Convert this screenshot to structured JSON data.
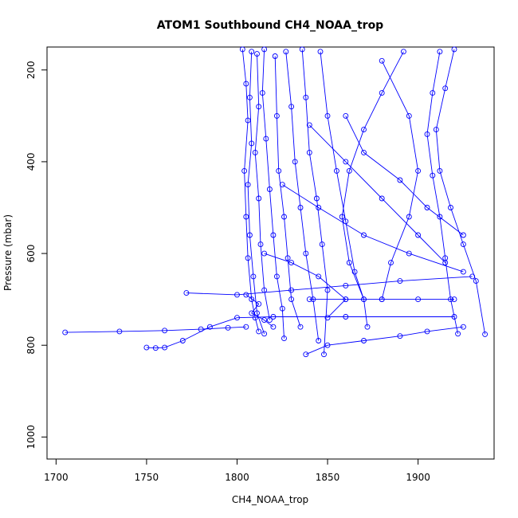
{
  "chart_data": {
    "type": "scatter",
    "title": "ATOM1 Southbound CH4_NOAA_trop",
    "xlabel": "CH4_NOAA_trop",
    "ylabel": "Pressure (mbar)",
    "xlim": [
      1695,
      1942
    ],
    "ylim": [
      1048,
      150
    ],
    "y_reversed": true,
    "xticks": [
      1700,
      1750,
      1800,
      1850,
      1900
    ],
    "yticks": [
      200,
      400,
      600,
      800,
      1000
    ],
    "series_color": "#0000ff",
    "marker": "open-circle",
    "series": [
      {
        "values": [
          [
            1803,
            155
          ],
          [
            1805,
            230
          ],
          [
            1806,
            310
          ],
          [
            1804,
            420
          ],
          [
            1805,
            520
          ],
          [
            1806,
            610
          ],
          [
            1808,
            700
          ],
          [
            1810,
            740
          ],
          [
            1812,
            770
          ]
        ]
      },
      {
        "values": [
          [
            1808,
            160
          ],
          [
            1807,
            260
          ],
          [
            1808,
            360
          ],
          [
            1806,
            450
          ],
          [
            1807,
            560
          ],
          [
            1809,
            650
          ],
          [
            1811,
            730
          ],
          [
            1815,
            775
          ]
        ]
      },
      {
        "values": [
          [
            1811,
            165
          ],
          [
            1812,
            280
          ],
          [
            1810,
            380
          ],
          [
            1812,
            480
          ],
          [
            1813,
            580
          ],
          [
            1815,
            680
          ],
          [
            1818,
            745
          ]
        ]
      },
      {
        "values": [
          [
            1815,
            155
          ],
          [
            1814,
            250
          ],
          [
            1816,
            350
          ],
          [
            1818,
            460
          ],
          [
            1820,
            560
          ],
          [
            1822,
            650
          ],
          [
            1825,
            720
          ],
          [
            1826,
            785
          ]
        ]
      },
      {
        "values": [
          [
            1821,
            170
          ],
          [
            1822,
            300
          ],
          [
            1823,
            420
          ],
          [
            1826,
            520
          ],
          [
            1828,
            610
          ],
          [
            1830,
            700
          ],
          [
            1835,
            760
          ]
        ]
      },
      {
        "values": [
          [
            1827,
            160
          ],
          [
            1830,
            280
          ],
          [
            1832,
            400
          ],
          [
            1835,
            500
          ],
          [
            1838,
            600
          ],
          [
            1842,
            700
          ],
          [
            1845,
            790
          ]
        ]
      },
      {
        "values": [
          [
            1836,
            155
          ],
          [
            1838,
            260
          ],
          [
            1840,
            380
          ],
          [
            1844,
            480
          ],
          [
            1847,
            580
          ],
          [
            1850,
            680
          ],
          [
            1848,
            820
          ]
        ]
      },
      {
        "values": [
          [
            1846,
            160
          ],
          [
            1850,
            300
          ],
          [
            1855,
            420
          ],
          [
            1860,
            530
          ],
          [
            1865,
            640
          ],
          [
            1870,
            700
          ],
          [
            1872,
            760
          ]
        ]
      },
      {
        "values": [
          [
            1892,
            160
          ],
          [
            1880,
            250
          ],
          [
            1870,
            330
          ],
          [
            1862,
            420
          ],
          [
            1858,
            520
          ],
          [
            1862,
            620
          ],
          [
            1870,
            700
          ]
        ]
      },
      {
        "values": [
          [
            1912,
            160
          ],
          [
            1908,
            250
          ],
          [
            1905,
            340
          ],
          [
            1908,
            430
          ],
          [
            1912,
            520
          ],
          [
            1915,
            610
          ],
          [
            1918,
            700
          ],
          [
            1922,
            775
          ]
        ]
      },
      {
        "values": [
          [
            1920,
            155
          ],
          [
            1915,
            240
          ],
          [
            1910,
            330
          ],
          [
            1912,
            420
          ],
          [
            1918,
            500
          ],
          [
            1925,
            580
          ],
          [
            1932,
            660
          ],
          [
            1937,
            776
          ]
        ]
      },
      {
        "values": [
          [
            1705,
            772
          ],
          [
            1735,
            770
          ],
          [
            1760,
            768
          ],
          [
            1780,
            765
          ],
          [
            1795,
            762
          ],
          [
            1805,
            760
          ]
        ]
      },
      {
        "values": [
          [
            1750,
            805
          ],
          [
            1755,
            806
          ],
          [
            1760,
            805
          ],
          [
            1770,
            790
          ],
          [
            1785,
            760
          ],
          [
            1800,
            740
          ],
          [
            1820,
            738
          ],
          [
            1860,
            738
          ],
          [
            1920,
            738
          ]
        ]
      },
      {
        "values": [
          [
            1772,
            686
          ],
          [
            1800,
            690
          ],
          [
            1830,
            680
          ],
          [
            1860,
            670
          ],
          [
            1890,
            660
          ],
          [
            1930,
            650
          ]
        ]
      },
      {
        "values": [
          [
            1840,
            700
          ],
          [
            1860,
            700
          ],
          [
            1880,
            700
          ],
          [
            1900,
            700
          ],
          [
            1920,
            700
          ]
        ]
      },
      {
        "values": [
          [
            1838,
            820
          ],
          [
            1850,
            800
          ],
          [
            1870,
            790
          ],
          [
            1890,
            780
          ],
          [
            1905,
            770
          ],
          [
            1925,
            760
          ]
        ]
      },
      {
        "values": [
          [
            1840,
            320
          ],
          [
            1860,
            400
          ],
          [
            1880,
            480
          ],
          [
            1900,
            560
          ],
          [
            1915,
            620
          ]
        ]
      },
      {
        "values": [
          [
            1860,
            300
          ],
          [
            1870,
            380
          ],
          [
            1890,
            440
          ],
          [
            1905,
            500
          ],
          [
            1925,
            560
          ]
        ]
      },
      {
        "values": [
          [
            1825,
            450
          ],
          [
            1845,
            500
          ],
          [
            1870,
            560
          ],
          [
            1895,
            600
          ],
          [
            1925,
            640
          ]
        ]
      },
      {
        "values": [
          [
            1880,
            180
          ],
          [
            1895,
            300
          ],
          [
            1900,
            420
          ],
          [
            1895,
            520
          ],
          [
            1885,
            620
          ],
          [
            1880,
            700
          ]
        ]
      },
      {
        "values": [
          [
            1815,
            600
          ],
          [
            1830,
            620
          ],
          [
            1845,
            650
          ],
          [
            1860,
            700
          ],
          [
            1850,
            740
          ]
        ]
      },
      {
        "values": [
          [
            1805,
            690
          ],
          [
            1812,
            710
          ],
          [
            1808,
            730
          ],
          [
            1815,
            745
          ],
          [
            1820,
            760
          ]
        ]
      }
    ]
  }
}
